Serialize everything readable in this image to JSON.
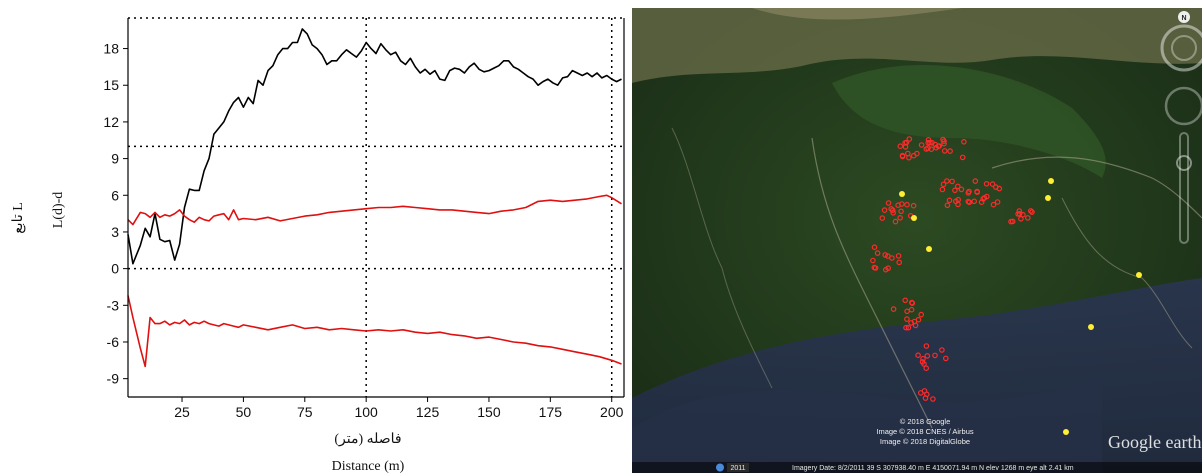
{
  "chart_data": {
    "type": "line",
    "title": "",
    "xlabel_fa": "فاصله (متر)",
    "xlabel_en": "Distance (m)",
    "ylabel_fa": "تابع L",
    "ylabel_en": "L(d)-d",
    "xlim": [
      3,
      205
    ],
    "ylim": [
      -10.5,
      20.5
    ],
    "xticks": [
      25,
      50,
      75,
      100,
      125,
      150,
      175,
      200
    ],
    "yticks": [
      -9,
      -6,
      -3,
      0,
      3,
      6,
      9,
      12,
      15,
      18
    ],
    "reference_lines": {
      "horizontal": [
        0,
        10
      ],
      "vertical": [
        100,
        200
      ]
    },
    "series": [
      {
        "color": "#000000",
        "x": [
          3,
          5,
          8,
          10,
          12,
          14,
          16,
          18,
          20,
          22,
          24,
          26,
          28,
          30,
          32,
          34,
          36,
          38,
          40,
          42,
          44,
          46,
          48,
          50,
          52,
          54,
          56,
          58,
          60,
          62,
          64,
          66,
          68,
          70,
          72,
          74,
          76,
          78,
          80,
          82,
          84,
          86,
          88,
          90,
          92,
          94,
          96,
          98,
          100,
          102,
          104,
          106,
          108,
          110,
          112,
          114,
          116,
          118,
          120,
          122,
          124,
          126,
          128,
          130,
          132,
          134,
          136,
          138,
          140,
          142,
          144,
          146,
          148,
          150,
          152,
          154,
          156,
          158,
          160,
          162,
          164,
          166,
          168,
          170,
          172,
          174,
          176,
          178,
          180,
          182,
          184,
          186,
          188,
          190,
          192,
          194,
          196,
          198,
          200,
          202,
          204
        ],
        "values": [
          2.8,
          0.4,
          1.9,
          3.3,
          2.6,
          4.5,
          2.4,
          2.2,
          2.3,
          0.7,
          2.0,
          5.0,
          6.5,
          6.4,
          6.4,
          8.0,
          9.0,
          11.0,
          11.5,
          12.0,
          12.9,
          13.6,
          14.0,
          13.2,
          14.0,
          13.5,
          15.4,
          15.0,
          16.2,
          16.6,
          17.5,
          18.0,
          18.0,
          18.5,
          18.5,
          19.6,
          19.2,
          18.3,
          18.0,
          17.5,
          16.7,
          17.0,
          17.0,
          17.5,
          17.9,
          17.6,
          17.3,
          17.8,
          18.5,
          18.0,
          17.6,
          18.4,
          17.9,
          17.5,
          17.7,
          17.0,
          16.7,
          17.2,
          16.5,
          16.0,
          16.3,
          15.9,
          16.2,
          15.5,
          15.4,
          16.2,
          16.4,
          16.3,
          16.0,
          16.5,
          16.8,
          16.3,
          16.1,
          16.2,
          16.4,
          16.6,
          17.0,
          17.0,
          16.5,
          16.3,
          16.0,
          15.7,
          15.5,
          15.0,
          15.3,
          15.5,
          15.2,
          15.0,
          15.6,
          15.7,
          16.2,
          16.0,
          15.8,
          16.0,
          15.7,
          16.0,
          15.6,
          15.8,
          15.5,
          15.3,
          15.5
        ]
      },
      {
        "color": "#e01010",
        "x": [
          3,
          5,
          8,
          10,
          12,
          14,
          16,
          18,
          20,
          22,
          24,
          26,
          28,
          30,
          32,
          34,
          36,
          38,
          40,
          42,
          44,
          46,
          48,
          50,
          55,
          60,
          65,
          70,
          75,
          80,
          85,
          90,
          95,
          100,
          105,
          110,
          115,
          120,
          125,
          130,
          135,
          140,
          145,
          150,
          155,
          160,
          165,
          170,
          175,
          180,
          185,
          190,
          195,
          198,
          200,
          204
        ],
        "values": [
          4.0,
          3.6,
          4.6,
          4.5,
          4.2,
          4.6,
          4.2,
          4.4,
          4.3,
          4.5,
          4.8,
          4.3,
          4.0,
          3.8,
          4.2,
          4.0,
          3.9,
          4.3,
          4.4,
          4.5,
          4.0,
          4.8,
          4.0,
          4.1,
          4.0,
          4.2,
          3.9,
          4.1,
          4.3,
          4.4,
          4.6,
          4.7,
          4.8,
          4.9,
          5.0,
          5.0,
          5.1,
          5.0,
          4.9,
          4.8,
          4.8,
          4.7,
          4.6,
          4.5,
          4.7,
          4.8,
          5.0,
          5.5,
          5.6,
          5.5,
          5.6,
          5.7,
          5.9,
          6.0,
          5.8,
          5.3
        ]
      },
      {
        "color": "#e01010",
        "x": [
          3,
          5,
          8,
          10,
          12,
          14,
          16,
          18,
          20,
          22,
          24,
          26,
          28,
          30,
          32,
          34,
          36,
          38,
          40,
          42,
          44,
          46,
          48,
          50,
          55,
          60,
          65,
          70,
          75,
          80,
          85,
          90,
          95,
          100,
          105,
          110,
          115,
          120,
          125,
          130,
          135,
          140,
          145,
          150,
          155,
          160,
          165,
          170,
          175,
          180,
          185,
          190,
          195,
          200,
          204
        ],
        "values": [
          -2.2,
          -4.0,
          -6.5,
          -8.0,
          -4.0,
          -4.5,
          -4.5,
          -4.3,
          -4.6,
          -4.4,
          -4.5,
          -4.2,
          -4.6,
          -4.4,
          -4.5,
          -4.3,
          -4.5,
          -4.6,
          -4.7,
          -4.5,
          -4.6,
          -4.7,
          -4.8,
          -4.6,
          -4.8,
          -5.0,
          -4.8,
          -4.6,
          -4.9,
          -4.8,
          -5.0,
          -4.9,
          -5.0,
          -5.1,
          -5.0,
          -5.1,
          -5.0,
          -5.2,
          -5.3,
          -5.2,
          -5.4,
          -5.5,
          -5.7,
          -5.6,
          -5.8,
          -6.0,
          -6.1,
          -6.3,
          -6.4,
          -6.6,
          -6.8,
          -7.0,
          -7.2,
          -7.5,
          -7.8
        ]
      }
    ]
  },
  "map": {
    "compass_letter": "N",
    "year_badge": "2011",
    "status_bar": "Imagery Date: 8/2/2011     39 S 307938.40 m E 4150071.94 m N  elev  1268 m     eye alt   2.41 km",
    "attribution": [
      "© 2018 Google",
      "Image © 2018 CNES / Airbus",
      "Image © 2018 DigitalGlobe"
    ],
    "brand": "Google earth",
    "marker_colors": {
      "point": "#ff2a2a",
      "highlight": "#ffee33"
    }
  }
}
